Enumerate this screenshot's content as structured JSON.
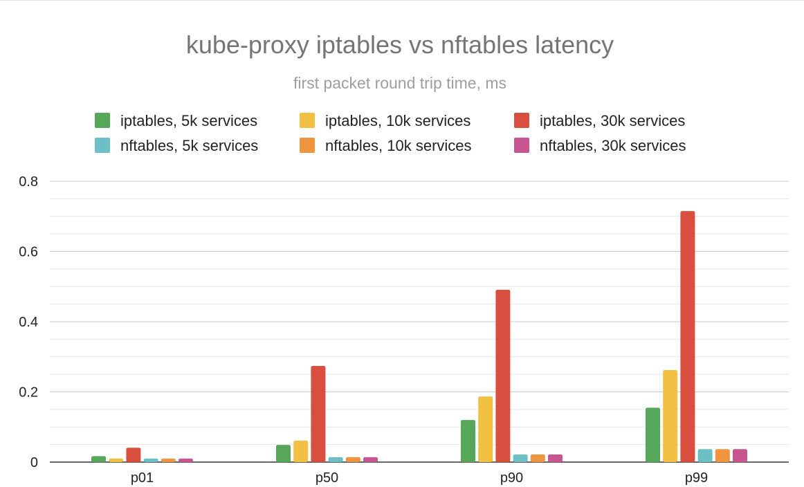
{
  "chart_data": {
    "type": "bar",
    "title": "kube-proxy iptables vs nftables latency",
    "subtitle": "first packet round trip time, ms",
    "categories": [
      "p01",
      "p50",
      "p90",
      "p99"
    ],
    "series": [
      {
        "name": "iptables, 5k services",
        "color": "#57a75b",
        "values": [
          0.017,
          0.049,
          0.12,
          0.155
        ]
      },
      {
        "name": "iptables, 10k services",
        "color": "#f2c043",
        "values": [
          0.01,
          0.061,
          0.187,
          0.262
        ]
      },
      {
        "name": "iptables, 30k services",
        "color": "#d84f3f",
        "values": [
          0.041,
          0.274,
          0.491,
          0.715
        ]
      },
      {
        "name": "nftables, 5k services",
        "color": "#6cc0c5",
        "values": [
          0.01,
          0.014,
          0.022,
          0.037
        ]
      },
      {
        "name": "nftables, 10k services",
        "color": "#ef9540",
        "values": [
          0.01,
          0.014,
          0.022,
          0.037
        ]
      },
      {
        "name": "nftables, 30k services",
        "color": "#c85591",
        "values": [
          0.01,
          0.014,
          0.022,
          0.037
        ]
      }
    ],
    "ylim": [
      0,
      0.8
    ],
    "y_ticks": [
      "0",
      "0.2",
      "0.4",
      "0.6",
      "0.8"
    ],
    "y_tick_values": [
      0,
      0.2,
      0.4,
      0.6,
      0.8
    ],
    "legend_position": "top",
    "grid": true
  }
}
